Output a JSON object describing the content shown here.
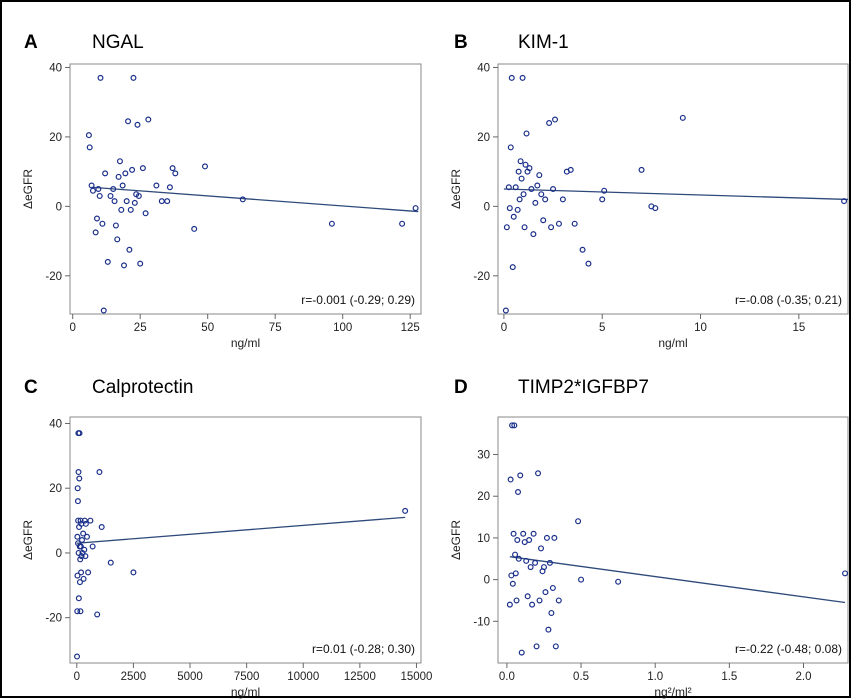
{
  "chart_data": [
    {
      "type": "scatter",
      "panel_letter": "A",
      "title": "NGAL",
      "xlabel": "ng/ml",
      "ylabel": "ΔeGFR",
      "xlim": [
        -1,
        129
      ],
      "ylim": [
        -31,
        41
      ],
      "xticks": [
        0,
        25,
        50,
        75,
        100,
        125
      ],
      "xtick_labels": [
        "0",
        "25",
        "50",
        "75",
        "100",
        "125"
      ],
      "yticks": [
        -20,
        0,
        20,
        40
      ],
      "ytick_labels": [
        "-20",
        "0",
        "20",
        "40"
      ],
      "annotation": "r=-0.001 (-0.29; 0.29)",
      "fit_line": [
        [
          7,
          5.5
        ],
        [
          128,
          -1.5
        ]
      ],
      "x": [
        6,
        6.3,
        7,
        7.5,
        8.5,
        9,
        9.5,
        10,
        10.3,
        11,
        11.5,
        12,
        13,
        14,
        15,
        15.5,
        16,
        16.5,
        17,
        17.5,
        18,
        18.5,
        19,
        19.5,
        20,
        20.5,
        21,
        21.5,
        22,
        22.5,
        23,
        23.5,
        24,
        24.5,
        25,
        26,
        27,
        28,
        31,
        33,
        35,
        36,
        37,
        38,
        45,
        49,
        63,
        96,
        122,
        127
      ],
      "y": [
        20.5,
        17,
        6,
        4.5,
        -7.5,
        -3.5,
        5,
        3,
        37,
        -5,
        -30,
        9.5,
        -16,
        3,
        5,
        1.5,
        -5.5,
        -9.5,
        8.5,
        13,
        -1,
        6,
        -17,
        9.5,
        1.5,
        24.5,
        -12.5,
        -1,
        10.5,
        37,
        1,
        3.5,
        23.5,
        3,
        -16.5,
        11,
        -2,
        25,
        6,
        1.5,
        1.5,
        5.5,
        11,
        9.5,
        -6.5,
        11.5,
        2,
        -5,
        -5,
        -0.5
      ]
    },
    {
      "type": "scatter",
      "panel_letter": "B",
      "title": "KIM-1",
      "xlabel": "ng/ml",
      "ylabel": "ΔeGFR",
      "xlim": [
        -0.3,
        17.5
      ],
      "ylim": [
        -31,
        41
      ],
      "xticks": [
        0,
        5,
        10,
        15
      ],
      "xtick_labels": [
        "0",
        "5",
        "10",
        "15"
      ],
      "yticks": [
        -20,
        0,
        20,
        40
      ],
      "ytick_labels": [
        "-20",
        "0",
        "20",
        "40"
      ],
      "annotation": "r=-0.08 (-0.35; 0.21)",
      "fit_line": [
        [
          0,
          5
        ],
        [
          17.5,
          2
        ]
      ],
      "x": [
        0.1,
        0.15,
        0.25,
        0.3,
        0.35,
        0.4,
        0.45,
        0.5,
        0.6,
        0.7,
        0.75,
        0.8,
        0.85,
        0.9,
        0.95,
        1.0,
        1.05,
        1.1,
        1.15,
        1.2,
        1.3,
        1.4,
        1.5,
        1.6,
        1.7,
        1.8,
        1.9,
        2.0,
        2.1,
        2.3,
        2.4,
        2.5,
        2.6,
        2.8,
        3.0,
        3.2,
        3.4,
        3.6,
        4.0,
        4.3,
        5.0,
        5.1,
        7.0,
        7.5,
        7.7,
        9.1,
        17.3
      ],
      "y": [
        -30,
        -6,
        5.5,
        -0.5,
        17,
        37,
        -17.5,
        -3,
        5.5,
        -1,
        10,
        2,
        13,
        8,
        37,
        3.5,
        -6,
        12,
        21,
        10,
        11,
        5,
        -8,
        1,
        6,
        9,
        3.5,
        -4,
        2,
        24,
        -6,
        5,
        25,
        -5,
        2,
        10,
        10.5,
        -5,
        -12.5,
        -16.5,
        2,
        4.5,
        10.5,
        0,
        -0.5,
        25.5,
        1.5
      ]
    },
    {
      "type": "scatter",
      "panel_letter": "C",
      "title": "Calprotectin",
      "xlabel": "ng/ml",
      "ylabel": "ΔeGFR",
      "xlim": [
        -300,
        15200
      ],
      "ylim": [
        -34,
        42
      ],
      "xticks": [
        0,
        2500,
        5000,
        7500,
        10000,
        12500,
        15000
      ],
      "xtick_labels": [
        "0",
        "2500",
        "5000",
        "7500",
        "10000",
        "12500",
        "15000"
      ],
      "yticks": [
        -20,
        0,
        20,
        40
      ],
      "ytick_labels": [
        "-20",
        "0",
        "20",
        "40"
      ],
      "annotation": "r=0.01 (-0.28; 0.30)",
      "fit_line": [
        [
          0,
          3
        ],
        [
          14500,
          11
        ]
      ],
      "x": [
        10,
        20,
        25,
        30,
        40,
        50,
        55,
        60,
        70,
        75,
        80,
        90,
        100,
        110,
        120,
        130,
        140,
        150,
        160,
        170,
        180,
        190,
        200,
        210,
        230,
        250,
        280,
        300,
        330,
        350,
        380,
        400,
        450,
        500,
        600,
        700,
        900,
        1000,
        1100,
        1500,
        2500,
        14500
      ],
      "y": [
        -32,
        -18,
        5,
        -7,
        20,
        16,
        3,
        10,
        37,
        25,
        0,
        -14,
        8,
        23,
        37,
        2,
        -9,
        -2,
        -18,
        10,
        2,
        -6,
        9,
        -1,
        4,
        0,
        6,
        -8,
        1,
        10,
        -1,
        9,
        5,
        -6,
        10,
        2,
        -19,
        25,
        8,
        -3,
        -6,
        13
      ]
    },
    {
      "type": "scatter",
      "panel_letter": "D",
      "title": "TIMP2*IGFBP7",
      "xlabel": "ng²/ml²",
      "ylabel": "ΔeGFR",
      "xlim": [
        -0.06,
        2.3
      ],
      "ylim": [
        -20,
        39
      ],
      "xticks": [
        0.0,
        0.5,
        1.0,
        1.5,
        2.0
      ],
      "xtick_labels": [
        "0.0",
        "0.5",
        "1.0",
        "1.5",
        "2.0"
      ],
      "yticks": [
        -10,
        0,
        10,
        20,
        30
      ],
      "ytick_labels": [
        "-10",
        "0",
        "10",
        "20",
        "30"
      ],
      "annotation": "r=-0.22 (-0.48; 0.08)",
      "fit_line": [
        [
          0.02,
          5.5
        ],
        [
          2.28,
          -5.5
        ]
      ],
      "x": [
        0.02,
        0.025,
        0.03,
        0.035,
        0.04,
        0.045,
        0.05,
        0.055,
        0.06,
        0.065,
        0.07,
        0.075,
        0.08,
        0.09,
        0.1,
        0.11,
        0.12,
        0.13,
        0.14,
        0.15,
        0.16,
        0.17,
        0.18,
        0.19,
        0.2,
        0.21,
        0.22,
        0.23,
        0.24,
        0.25,
        0.26,
        0.27,
        0.28,
        0.29,
        0.3,
        0.31,
        0.32,
        0.33,
        0.35,
        0.48,
        0.5,
        0.75,
        2.28
      ],
      "y": [
        -6,
        24,
        1,
        37,
        -1,
        11,
        37,
        6,
        1.5,
        -5,
        9.5,
        21,
        5,
        25,
        -17.5,
        11,
        9,
        4.5,
        -4,
        9.5,
        3,
        -6,
        11,
        4,
        -16,
        25.5,
        -5,
        7.5,
        2,
        3,
        -3,
        10,
        -12,
        4,
        -8,
        -2,
        10,
        -16,
        -5,
        14,
        0,
        -0.5,
        1.5
      ]
    }
  ]
}
